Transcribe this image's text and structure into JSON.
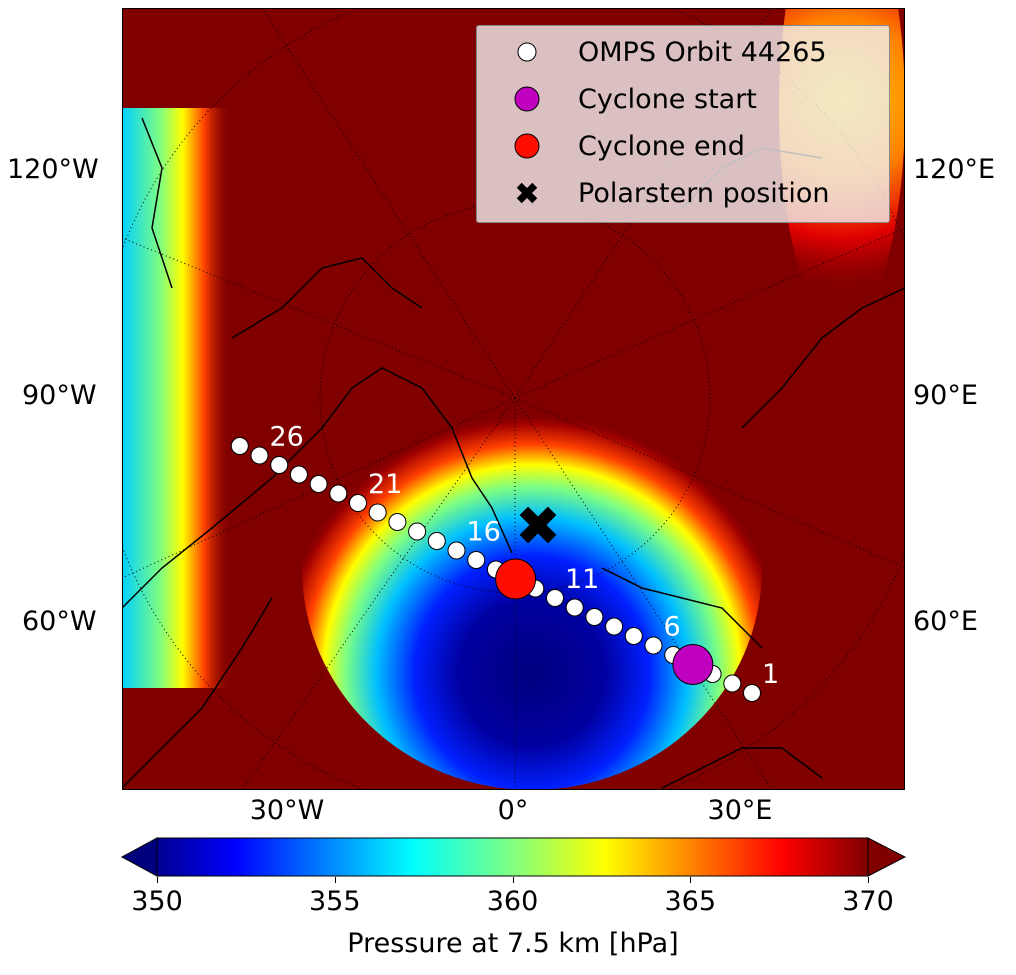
{
  "map": {
    "lat_labels_left": [
      "120°W",
      "90°W",
      "60°W"
    ],
    "lat_labels_right": [
      "120°E",
      "90°E",
      "60°E"
    ],
    "lon_labels_bottom": [
      "30°W",
      "0°",
      "30°E"
    ],
    "orbit_point_labels": [
      "1",
      "6",
      "11",
      "16",
      "21",
      "26"
    ],
    "orbit_point_count": 27,
    "cyclone_start_index": 4,
    "cyclone_end_index": 13
  },
  "legend": {
    "items": [
      {
        "label": "OMPS Orbit 44265",
        "color": "#ffffff",
        "marker": "circle"
      },
      {
        "label": "Cyclone start",
        "color": "#bf00bf",
        "marker": "circle"
      },
      {
        "label": "Cyclone end",
        "color": "#ff0d00",
        "marker": "circle"
      },
      {
        "label": "Polarstern position",
        "color": "#000000",
        "marker": "x"
      }
    ]
  },
  "colorbar": {
    "label": "Pressure at 7.5 km [hPa]",
    "ticks": [
      "350",
      "355",
      "360",
      "365",
      "370"
    ],
    "min": 350,
    "max": 370,
    "extend": "both",
    "cmap": "jet"
  }
}
